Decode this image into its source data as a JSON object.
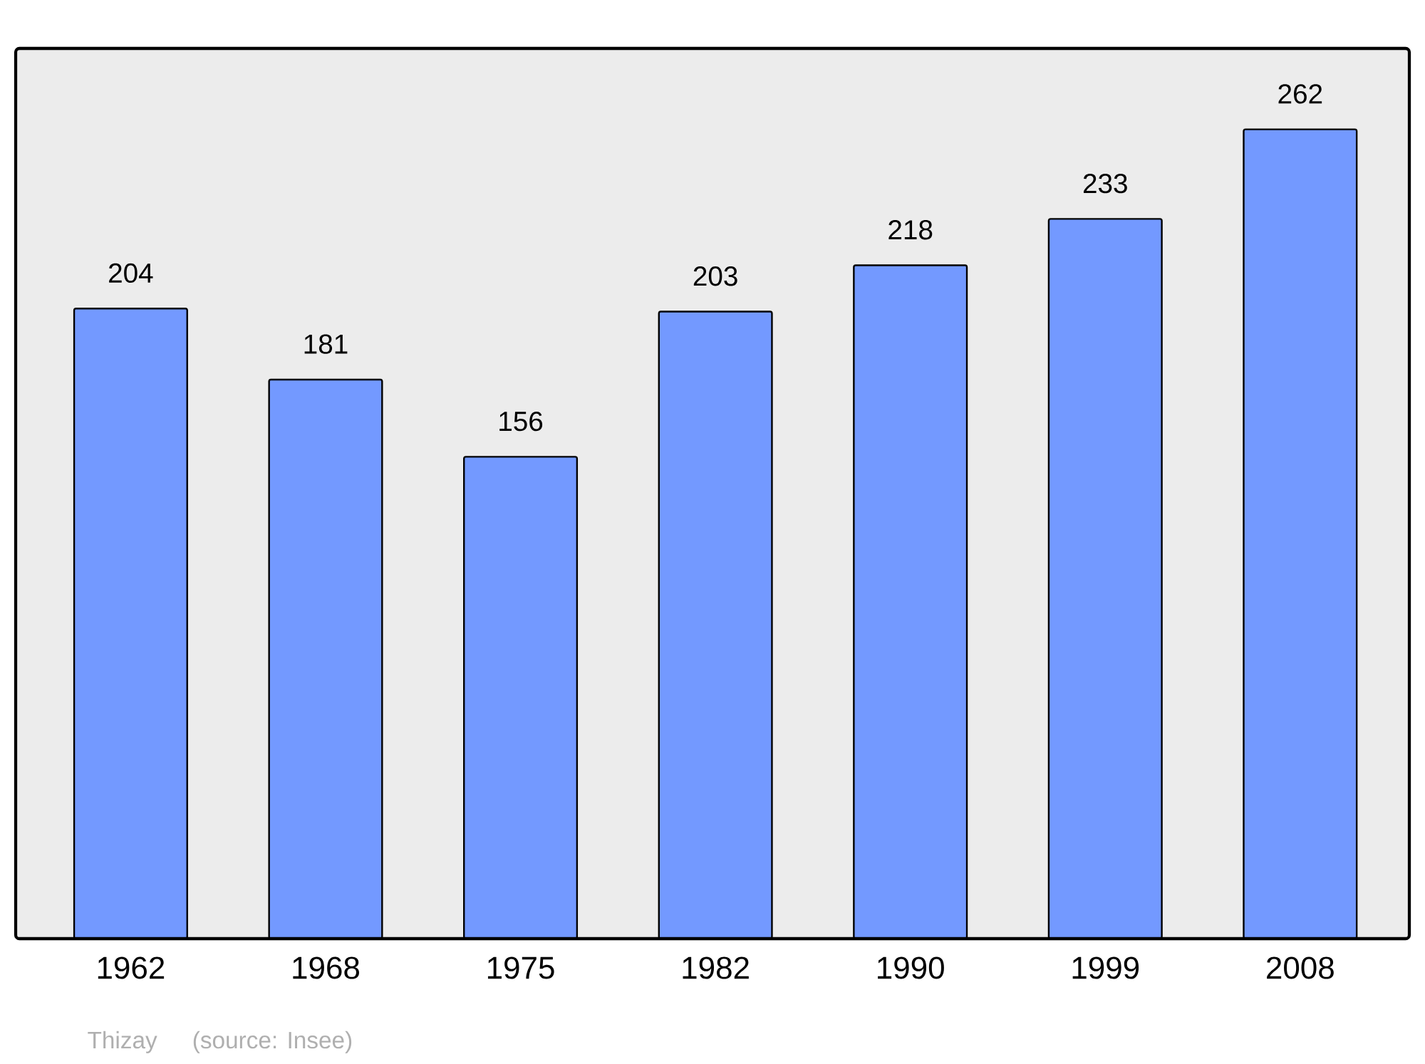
{
  "chart_data": {
    "type": "bar",
    "categories": [
      "1962",
      "1968",
      "1975",
      "1982",
      "1990",
      "1999",
      "2008"
    ],
    "values": [
      204,
      181,
      156,
      203,
      218,
      233,
      262
    ],
    "color": "#7399ff",
    "data_labels": true,
    "annotations": [
      "Thizay",
      "(source: Insee)"
    ]
  }
}
